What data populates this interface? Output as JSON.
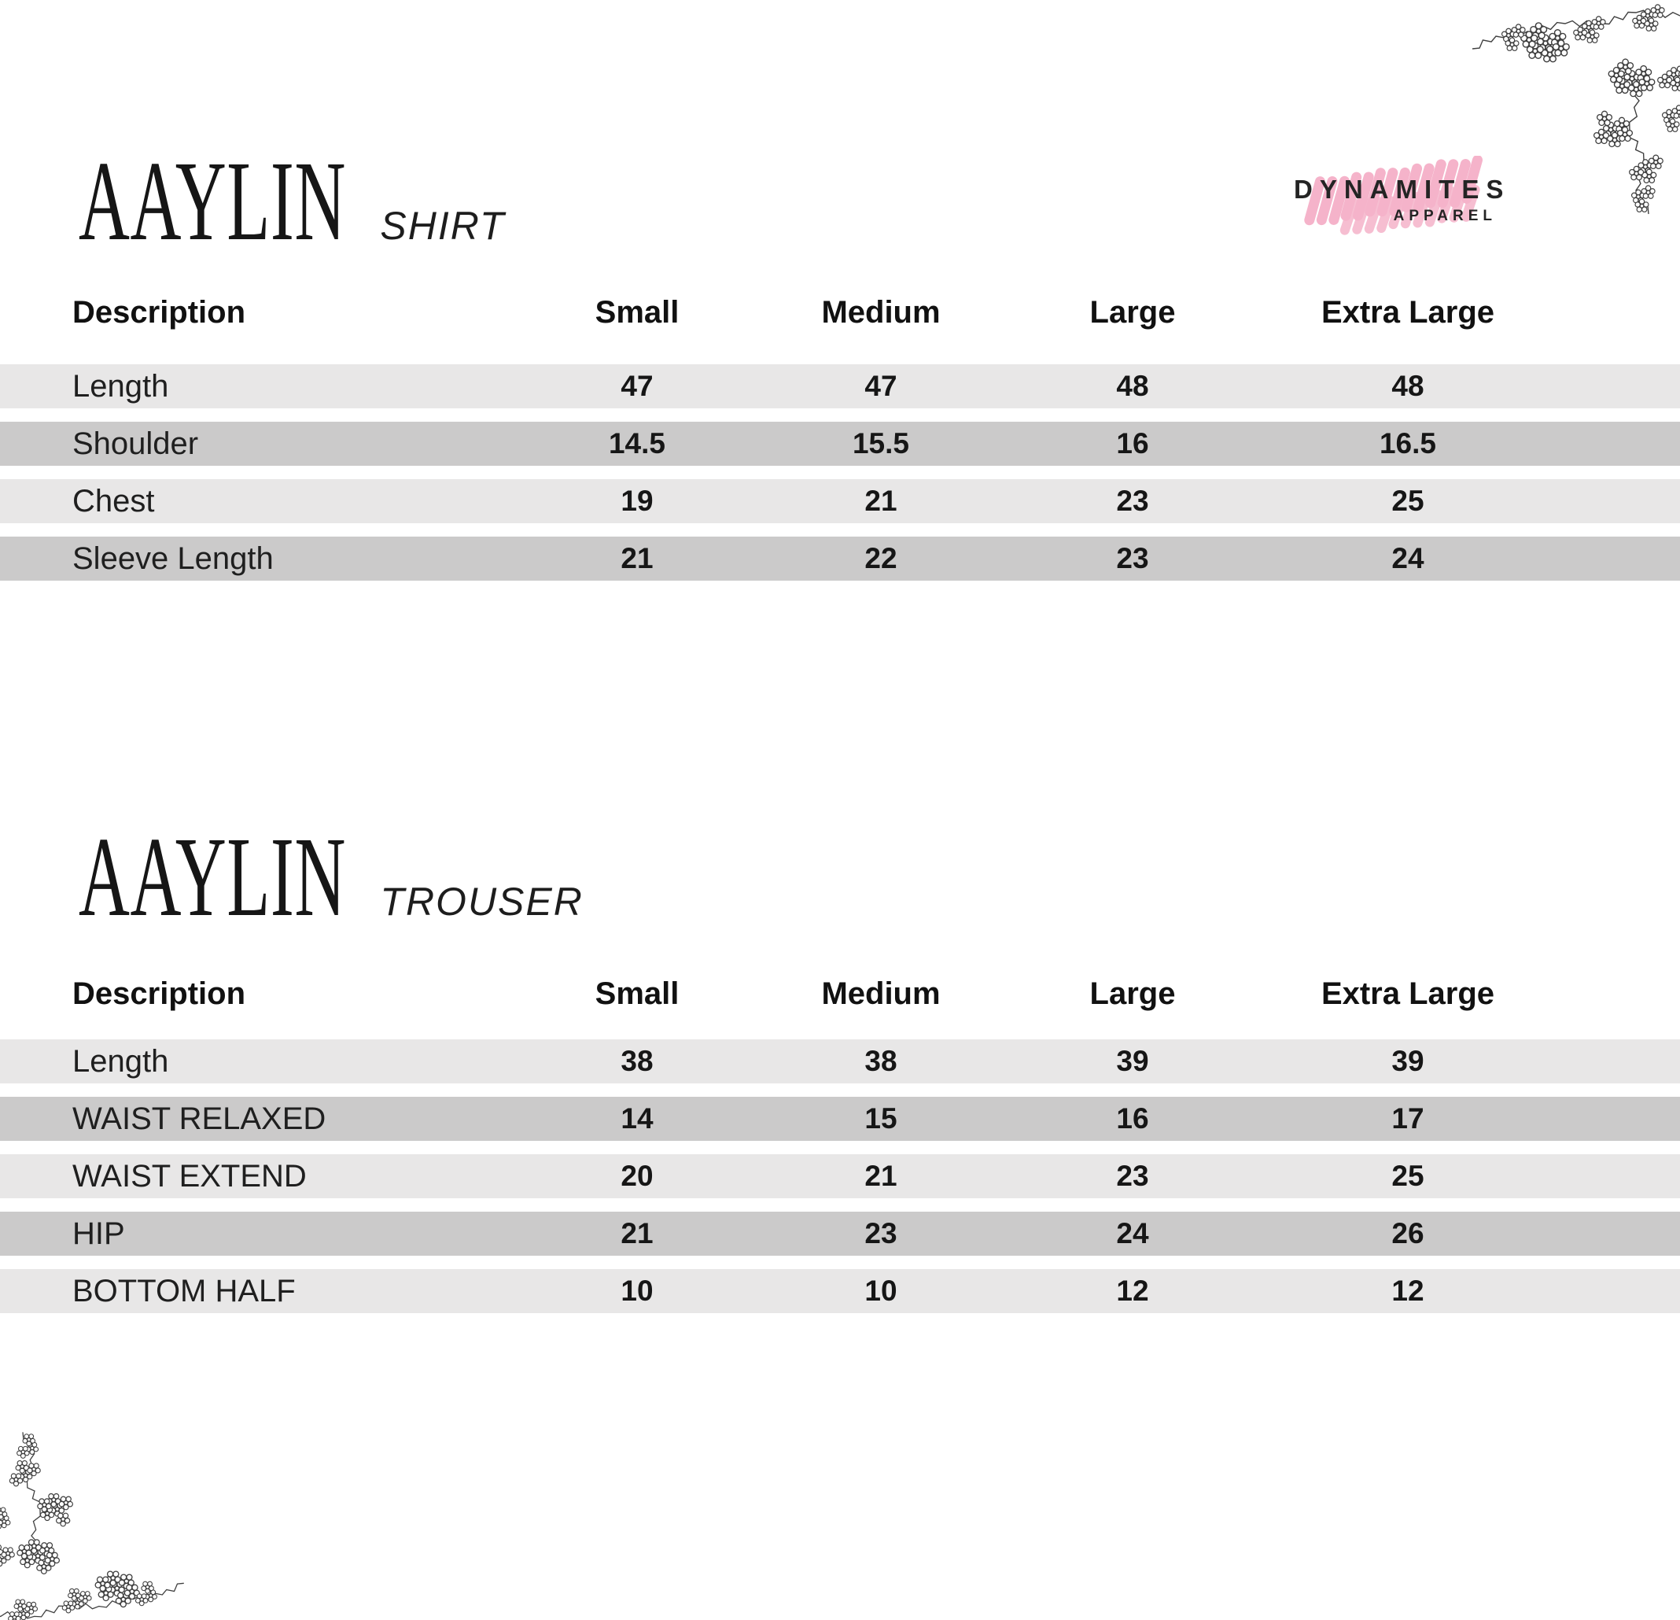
{
  "logo": {
    "brand": "DYNAMITES",
    "sub": "APPAREL"
  },
  "sections": [
    {
      "id": "shirt",
      "title": "AAYLIN",
      "subtitle": "SHIRT",
      "table": {
        "headers": [
          "Description",
          "Small",
          "Medium",
          "Large",
          "Extra Large"
        ],
        "rows": [
          {
            "label": "Length",
            "values": [
              "47",
              "47",
              "48",
              "48"
            ]
          },
          {
            "label": "Shoulder",
            "values": [
              "14.5",
              "15.5",
              "16",
              "16.5"
            ]
          },
          {
            "label": "Chest",
            "values": [
              "19",
              "21",
              "23",
              "25"
            ]
          },
          {
            "label": "Sleeve Length",
            "values": [
              "21",
              "22",
              "23",
              "24"
            ]
          }
        ]
      }
    },
    {
      "id": "trouser",
      "title": "AAYLIN",
      "subtitle": "TROUSER",
      "table": {
        "headers": [
          "Description",
          "Small",
          "Medium",
          "Large",
          "Extra Large"
        ],
        "rows": [
          {
            "label": "Length",
            "values": [
              "38",
              "38",
              "39",
              "39"
            ]
          },
          {
            "label": "WAIST RELAXED",
            "values": [
              "14",
              "15",
              "16",
              "17"
            ]
          },
          {
            "label": "WAIST EXTEND",
            "values": [
              "20",
              "21",
              "23",
              "25"
            ]
          },
          {
            "label": "HIP",
            "values": [
              "21",
              "23",
              "24",
              "26"
            ]
          },
          {
            "label": "BOTTOM HALF",
            "values": [
              "10",
              "10",
              "12",
              "12"
            ]
          }
        ]
      }
    }
  ],
  "decorations": [
    "floral-branch-top-right",
    "floral-branch-bottom-left"
  ],
  "colors": {
    "background": "#ffffff",
    "row_light": "#e8e7e7",
    "row_dark": "#cbcaca",
    "text": "#1b1b1b",
    "brush_pink": "#f5b3ca",
    "flower_line": "#3f3f3f"
  }
}
